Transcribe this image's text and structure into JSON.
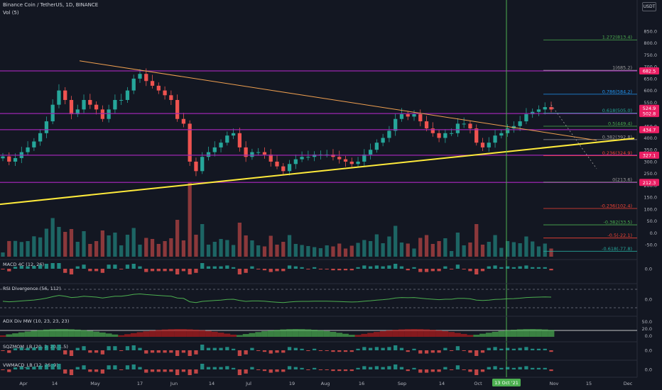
{
  "header": {
    "symbol": "Binance Coin / TetherUS, 1D, BINANCE",
    "volume_indicator": "Vol (5)",
    "currency_button": "USDT"
  },
  "cursor_date_label": "13 Oct '21",
  "colors": {
    "background": "#131722",
    "up": "#26a69a",
    "down": "#ef5350",
    "horizontal_level": "#9c27b0",
    "price_badge": "#e91e63",
    "trendline_upper": "#f0a050",
    "trendline_lower": "#ffeb3b",
    "cursor_line": "#4caf50"
  },
  "chart_data": {
    "type": "candlestick",
    "x_ticks": [
      "Apr",
      "14",
      "May",
      "17",
      "Jun",
      "14",
      "Jul",
      "19",
      "Aug",
      "16",
      "Sep",
      "14",
      "Oct",
      "18",
      "Nov",
      "15",
      "Dec"
    ],
    "price_axis_ticks": [
      850.0,
      800.0,
      750.0,
      700.0,
      650.0,
      600.0,
      550.0,
      500.0,
      450.0,
      400.0,
      350.0,
      300.0,
      250.0,
      200.0,
      150.0,
      100.0,
      50.0,
      0.0,
      -50.0
    ],
    "price_axis_display": [
      "850.0",
      "800.0",
      "750.0",
      "700.0",
      "650.0",
      "600.0",
      "550.0",
      "500.0",
      "450.0",
      "400.0",
      "350.0",
      "300.0",
      "250.0",
      "200.0",
      "150.0",
      "100.0",
      "50.0",
      "0.0",
      "-50.0"
    ],
    "price_badges": [
      {
        "label": "682.5",
        "value": 682.5
      },
      {
        "label": "524.9",
        "value": 524.9
      },
      {
        "label": "502.8",
        "value": 502.8
      },
      {
        "label": "434.7",
        "value": 434.7
      },
      {
        "label": "327.1",
        "value": 327.1
      },
      {
        "label": "212.3",
        "value": 212.3
      }
    ],
    "horizontal_levels": [
      682.5,
      502.8,
      434.7,
      327.1,
      212.3
    ],
    "fibonacci": [
      {
        "label": "1.272(813.4)",
        "value": 813.4,
        "color": "#4caf50"
      },
      {
        "label": "1(685.2)",
        "value": 685.2,
        "color": "#9e9e9e"
      },
      {
        "label": "0.786(584.2)",
        "value": 584.2,
        "color": "#2196f3"
      },
      {
        "label": "0.618(505.0)",
        "value": 505.0,
        "color": "#26a69a"
      },
      {
        "label": "0.5(449.4)",
        "value": 449.4,
        "color": "#4caf50"
      },
      {
        "label": "0.382(392.8)",
        "value": 392.8,
        "color": "#9e9e9e"
      },
      {
        "label": "0.236(324.9)",
        "value": 324.9,
        "color": "#f44336"
      },
      {
        "label": "0(213.6)",
        "value": 213.6,
        "color": "#9e9e9e"
      },
      {
        "label": "-0.236(102.4)",
        "value": 102.4,
        "color": "#f44336"
      },
      {
        "label": "-0.382(33.5)",
        "value": 33.5,
        "color": "#4caf50"
      },
      {
        "label": "-0.5(-22.1)",
        "value": -22.1,
        "color": "#f44336"
      },
      {
        "label": "-0.618(-77.8)",
        "value": -77.8,
        "color": "#26a69a"
      }
    ],
    "close_series": [
      322,
      300,
      315,
      340,
      360,
      385,
      420,
      470,
      540,
      600,
      560,
      500,
      520,
      560,
      540,
      520,
      480,
      520,
      560,
      560,
      600,
      650,
      670,
      640,
      620,
      600,
      580,
      560,
      480,
      460,
      300,
      260,
      320,
      340,
      360,
      380,
      410,
      420,
      360,
      320,
      340,
      340,
      330,
      300,
      280,
      260,
      290,
      310,
      320,
      320,
      330,
      330,
      330,
      320,
      310,
      300,
      290,
      300,
      330,
      350,
      380,
      400,
      430,
      480,
      500,
      490,
      500,
      470,
      440,
      420,
      400,
      420,
      420,
      460,
      460,
      440,
      380,
      360,
      380,
      410,
      420,
      440,
      450,
      470,
      500,
      510,
      520,
      530,
      520
    ],
    "panes": [
      {
        "name": "MACD 4C (12, 26)",
        "tick": "0.0"
      },
      {
        "name": "RSI Divergence (56, 112)",
        "tick": "0.0"
      },
      {
        "name": "ADX Div MW (10, 23, 23, 23)",
        "ticks": [
          "50.0",
          "20.0",
          "0.0"
        ]
      },
      {
        "name": "SQZMOM_LB (20, 2, 20, 1.5)",
        "tick": "0.0"
      },
      {
        "name": "VWMACD_LB (12, 26, 9)",
        "tick": "0.0"
      }
    ]
  }
}
